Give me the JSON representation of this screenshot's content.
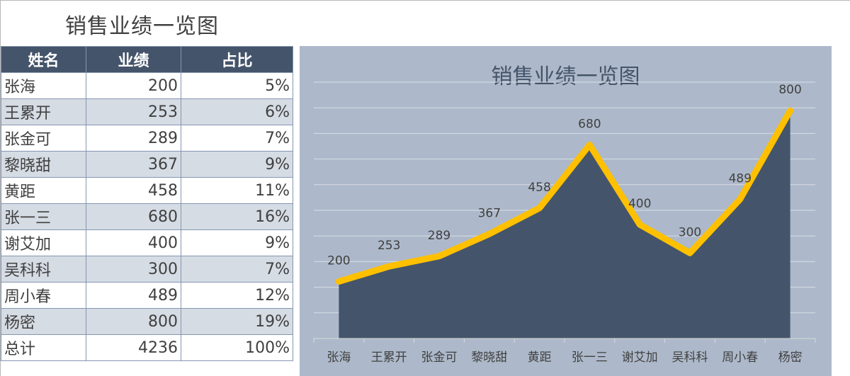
{
  "page_title": "销售业绩一览图",
  "table": {
    "headers": [
      "姓名",
      "业绩",
      "占比"
    ],
    "rows": [
      {
        "name": "张海",
        "value": "200",
        "share": "5%"
      },
      {
        "name": "王累开",
        "value": "253",
        "share": "6%"
      },
      {
        "name": "张金可",
        "value": "289",
        "share": "7%"
      },
      {
        "name": "黎晓甜",
        "value": "367",
        "share": "9%"
      },
      {
        "name": "黄距",
        "value": "458",
        "share": "11%"
      },
      {
        "name": "张一三",
        "value": "680",
        "share": "16%"
      },
      {
        "name": "谢艾加",
        "value": "400",
        "share": "9%"
      },
      {
        "name": "吴科科",
        "value": "300",
        "share": "7%"
      },
      {
        "name": "周小春",
        "value": "489",
        "share": "12%"
      },
      {
        "name": "杨密",
        "value": "800",
        "share": "19%"
      }
    ],
    "total": {
      "name": "总计",
      "value": "4236",
      "share": "100%"
    }
  },
  "chart_data": {
    "type": "area",
    "title": "销售业绩一览图",
    "categories": [
      "张海",
      "王累开",
      "张金可",
      "黎晓甜",
      "黄距",
      "张一三",
      "谢艾加",
      "吴科科",
      "周小春",
      "杨密"
    ],
    "series": [
      {
        "values": [
          200,
          253,
          289,
          367,
          458,
          680,
          400,
          300,
          489,
          800
        ]
      }
    ],
    "ylim": [
      0,
      900
    ],
    "grid": true,
    "data_labels": true,
    "colors": {
      "panel": "#adb9ca",
      "area": "#44546a",
      "line": "#ffc000",
      "grid": "#d9dee6"
    }
  }
}
